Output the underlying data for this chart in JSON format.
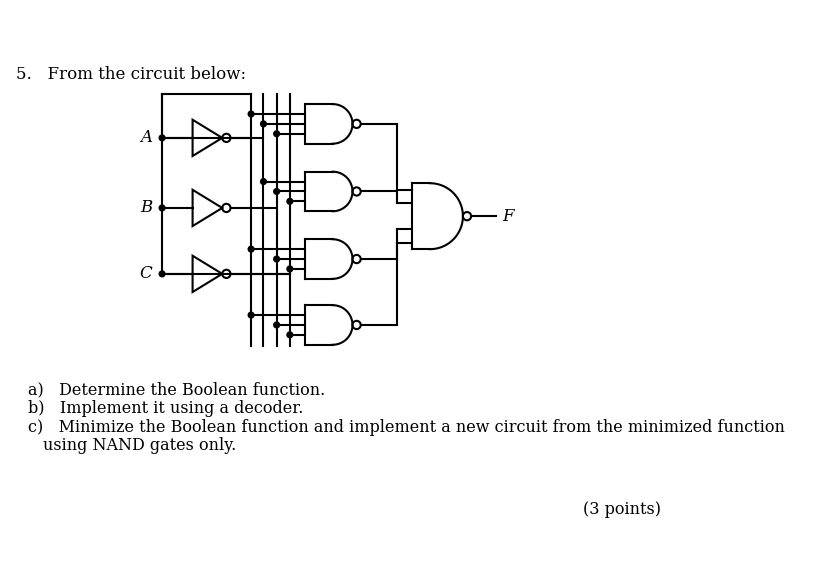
{
  "title_text": "5.   From the circuit below:",
  "question_a": "a)   Determine the Boolean function.",
  "question_b": "b)   Implement it using a decoder.",
  "question_c1": "c)   Minimize the Boolean function and implement a new circuit from the minimized function",
  "question_c2": "      using NAND gates only.",
  "points_text": "(3 points)",
  "bg_color": "#ffffff",
  "line_color": "#000000",
  "font_size_title": 12,
  "font_size_text": 11.5
}
